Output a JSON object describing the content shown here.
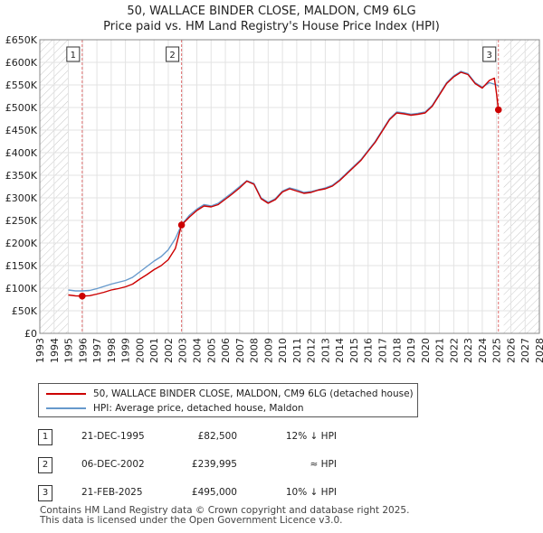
{
  "title_line1": "50, WALLACE BINDER CLOSE, MALDON, CM9 6LG",
  "title_line2": "Price paid vs. HM Land Registry's House Price Index (HPI)",
  "chart_data": {
    "type": "line",
    "xlim": [
      1993,
      2028
    ],
    "ylim": [
      0,
      650000
    ],
    "y_ticks": [
      {
        "value": 0,
        "label": "£0"
      },
      {
        "value": 50000,
        "label": "£50K"
      },
      {
        "value": 100000,
        "label": "£100K"
      },
      {
        "value": 150000,
        "label": "£150K"
      },
      {
        "value": 200000,
        "label": "£200K"
      },
      {
        "value": 250000,
        "label": "£250K"
      },
      {
        "value": 300000,
        "label": "£300K"
      },
      {
        "value": 350000,
        "label": "£350K"
      },
      {
        "value": 400000,
        "label": "£400K"
      },
      {
        "value": 450000,
        "label": "£450K"
      },
      {
        "value": 500000,
        "label": "£500K"
      },
      {
        "value": 550000,
        "label": "£550K"
      },
      {
        "value": 600000,
        "label": "£600K"
      },
      {
        "value": 650000,
        "label": "£650K"
      }
    ],
    "x_ticks": [
      "1993",
      "1994",
      "1995",
      "1996",
      "1997",
      "1998",
      "1999",
      "2000",
      "2001",
      "2002",
      "2003",
      "2004",
      "2005",
      "2006",
      "2007",
      "2008",
      "2009",
      "2010",
      "2011",
      "2012",
      "2013",
      "2014",
      "2015",
      "2016",
      "2017",
      "2018",
      "2019",
      "2020",
      "2021",
      "2022",
      "2023",
      "2024",
      "2025",
      "2026",
      "2027",
      "2028"
    ],
    "hatched_ranges": [
      [
        1993,
        1995.0
      ],
      [
        2025.5,
        2028
      ]
    ],
    "series": [
      {
        "name": "HPI: Average price, detached house, Maldon",
        "color": "#6699cc",
        "points": [
          [
            1995.0,
            96000
          ],
          [
            1995.5,
            94000
          ],
          [
            1995.97,
            94000
          ],
          [
            1996.5,
            95000
          ],
          [
            1997.0,
            99000
          ],
          [
            1997.5,
            104000
          ],
          [
            1998.0,
            109000
          ],
          [
            1998.5,
            113000
          ],
          [
            1999.0,
            117000
          ],
          [
            1999.5,
            124000
          ],
          [
            2000.0,
            136000
          ],
          [
            2000.5,
            148000
          ],
          [
            2001.0,
            160000
          ],
          [
            2001.5,
            170000
          ],
          [
            2002.0,
            185000
          ],
          [
            2002.5,
            210000
          ],
          [
            2002.93,
            240000
          ],
          [
            2003.5,
            262000
          ],
          [
            2004.0,
            275000
          ],
          [
            2004.5,
            285000
          ],
          [
            2005.0,
            282000
          ],
          [
            2005.5,
            288000
          ],
          [
            2006.0,
            300000
          ],
          [
            2006.5,
            312000
          ],
          [
            2007.0,
            325000
          ],
          [
            2007.5,
            338000
          ],
          [
            2008.0,
            332000
          ],
          [
            2008.5,
            300000
          ],
          [
            2009.0,
            290000
          ],
          [
            2009.5,
            298000
          ],
          [
            2010.0,
            315000
          ],
          [
            2010.5,
            322000
          ],
          [
            2011.0,
            318000
          ],
          [
            2011.5,
            312000
          ],
          [
            2012.0,
            314000
          ],
          [
            2012.5,
            318000
          ],
          [
            2013.0,
            322000
          ],
          [
            2013.5,
            328000
          ],
          [
            2014.0,
            340000
          ],
          [
            2014.5,
            355000
          ],
          [
            2015.0,
            370000
          ],
          [
            2015.5,
            385000
          ],
          [
            2016.0,
            405000
          ],
          [
            2016.5,
            425000
          ],
          [
            2017.0,
            450000
          ],
          [
            2017.5,
            475000
          ],
          [
            2018.0,
            490000
          ],
          [
            2018.5,
            488000
          ],
          [
            2019.0,
            485000
          ],
          [
            2019.5,
            487000
          ],
          [
            2020.0,
            490000
          ],
          [
            2020.5,
            505000
          ],
          [
            2021.0,
            530000
          ],
          [
            2021.5,
            555000
          ],
          [
            2022.0,
            570000
          ],
          [
            2022.5,
            580000
          ],
          [
            2023.0,
            575000
          ],
          [
            2023.5,
            555000
          ],
          [
            2024.0,
            545000
          ],
          [
            2024.5,
            555000
          ],
          [
            2025.0,
            550000
          ],
          [
            2025.13,
            548000
          ]
        ]
      },
      {
        "name": "50, WALLACE BINDER CLOSE, MALDON, CM9 6LG (detached house)",
        "color": "#cc0000",
        "points": [
          [
            1995.0,
            85000
          ],
          [
            1995.5,
            83000
          ],
          [
            1995.97,
            82500
          ],
          [
            1996.5,
            83500
          ],
          [
            1997.0,
            87000
          ],
          [
            1997.5,
            91000
          ],
          [
            1998.0,
            96000
          ],
          [
            1998.5,
            99000
          ],
          [
            1999.0,
            103000
          ],
          [
            1999.5,
            109000
          ],
          [
            2000.0,
            120000
          ],
          [
            2000.5,
            130000
          ],
          [
            2001.0,
            141000
          ],
          [
            2001.5,
            150000
          ],
          [
            2002.0,
            163000
          ],
          [
            2002.5,
            188000
          ],
          [
            2002.93,
            239995
          ],
          [
            2003.5,
            258000
          ],
          [
            2004.0,
            272000
          ],
          [
            2004.5,
            282000
          ],
          [
            2005.0,
            280000
          ],
          [
            2005.5,
            285000
          ],
          [
            2006.0,
            297000
          ],
          [
            2006.5,
            309000
          ],
          [
            2007.0,
            322000
          ],
          [
            2007.5,
            337000
          ],
          [
            2008.0,
            330000
          ],
          [
            2008.5,
            298000
          ],
          [
            2009.0,
            288000
          ],
          [
            2009.5,
            296000
          ],
          [
            2010.0,
            313000
          ],
          [
            2010.5,
            320000
          ],
          [
            2011.0,
            315000
          ],
          [
            2011.5,
            310000
          ],
          [
            2012.0,
            312000
          ],
          [
            2012.5,
            317000
          ],
          [
            2013.0,
            320000
          ],
          [
            2013.5,
            326000
          ],
          [
            2014.0,
            338000
          ],
          [
            2014.5,
            353000
          ],
          [
            2015.0,
            368000
          ],
          [
            2015.5,
            383000
          ],
          [
            2016.0,
            403000
          ],
          [
            2016.5,
            423000
          ],
          [
            2017.0,
            448000
          ],
          [
            2017.5,
            473000
          ],
          [
            2018.0,
            488000
          ],
          [
            2018.5,
            486000
          ],
          [
            2019.0,
            483000
          ],
          [
            2019.5,
            485000
          ],
          [
            2020.0,
            488000
          ],
          [
            2020.5,
            503000
          ],
          [
            2021.0,
            528000
          ],
          [
            2021.5,
            553000
          ],
          [
            2022.0,
            568000
          ],
          [
            2022.5,
            578000
          ],
          [
            2023.0,
            573000
          ],
          [
            2023.5,
            553000
          ],
          [
            2024.0,
            543000
          ],
          [
            2024.5,
            560000
          ],
          [
            2024.85,
            565000
          ],
          [
            2025.0,
            530000
          ],
          [
            2025.13,
            495000
          ]
        ]
      }
    ],
    "sales": [
      {
        "label": "1",
        "x": 1995.97,
        "value": 82500
      },
      {
        "label": "2",
        "x": 2002.93,
        "value": 239995
      },
      {
        "label": "3",
        "x": 2025.13,
        "value": 495000
      }
    ]
  },
  "legend": {
    "property_label": "50, WALLACE BINDER CLOSE, MALDON, CM9 6LG (detached house)",
    "hpi_label": "HPI: Average price, detached house, Maldon",
    "property_color": "#cc0000",
    "hpi_color": "#6699cc"
  },
  "transactions": [
    {
      "num": "1",
      "date": "21-DEC-1995",
      "price": "£82,500",
      "hpi": "12% ↓ HPI"
    },
    {
      "num": "2",
      "date": "06-DEC-2002",
      "price": "£239,995",
      "hpi": "≈ HPI"
    },
    {
      "num": "3",
      "date": "21-FEB-2025",
      "price": "£495,000",
      "hpi": "10% ↓ HPI"
    }
  ],
  "footer_line1": "Contains HM Land Registry data © Crown copyright and database right 2025.",
  "footer_line2": "This data is licensed under the Open Government Licence v3.0."
}
